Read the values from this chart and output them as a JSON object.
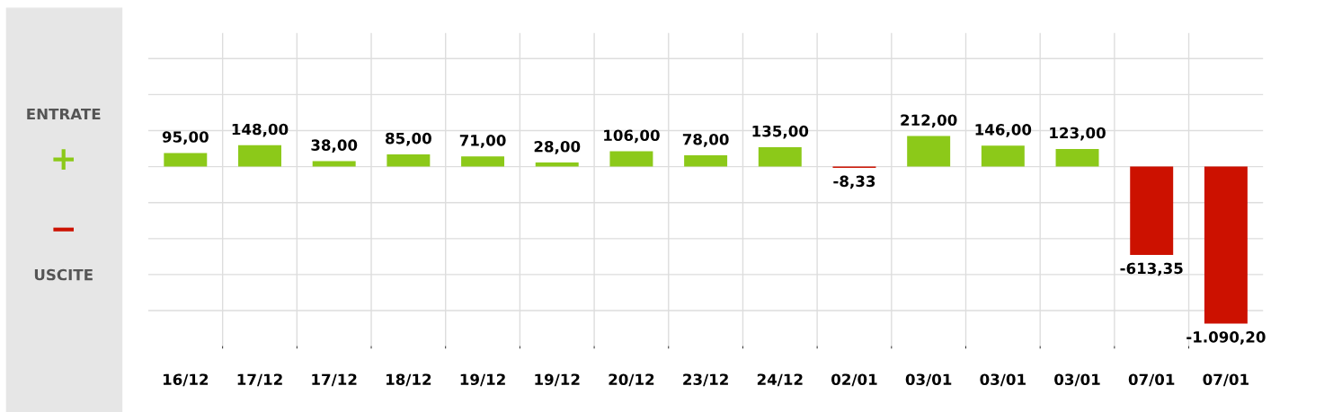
{
  "chart_data": {
    "type": "bar",
    "categories": [
      "16/12",
      "17/12",
      "17/12",
      "18/12",
      "19/12",
      "19/12",
      "20/12",
      "23/12",
      "24/12",
      "02/01",
      "03/01",
      "03/01",
      "03/01",
      "07/01",
      "07/01"
    ],
    "values": [
      95.0,
      148.0,
      38.0,
      85.0,
      71.0,
      28.0,
      106.0,
      78.0,
      135.0,
      -8.33,
      212.0,
      146.0,
      123.0,
      -613.35,
      -1090.2
    ],
    "colors": [
      "#8cc919",
      "#8cc919",
      "#8cc919",
      "#8cc919",
      "#8cc919",
      "#8cc919",
      "#8cc919",
      "#8cc919",
      "#8cc919",
      "#cc1100",
      "#8cc919",
      "#8cc919",
      "#8cc919",
      "#cc1100",
      "#cc1100"
    ],
    "value_labels": [
      "95,00",
      "148,00",
      "38,00",
      "85,00",
      "71,00",
      "28,00",
      "106,00",
      "78,00",
      "135,00",
      "-8,33",
      "212,00",
      "146,00",
      "123,00",
      "-613,35",
      "-1.090,20"
    ],
    "tick_labels": "x",
    "grid": true,
    "annotations": [
      "ENTRATE",
      "+",
      "−",
      "USCITE"
    ]
  }
}
